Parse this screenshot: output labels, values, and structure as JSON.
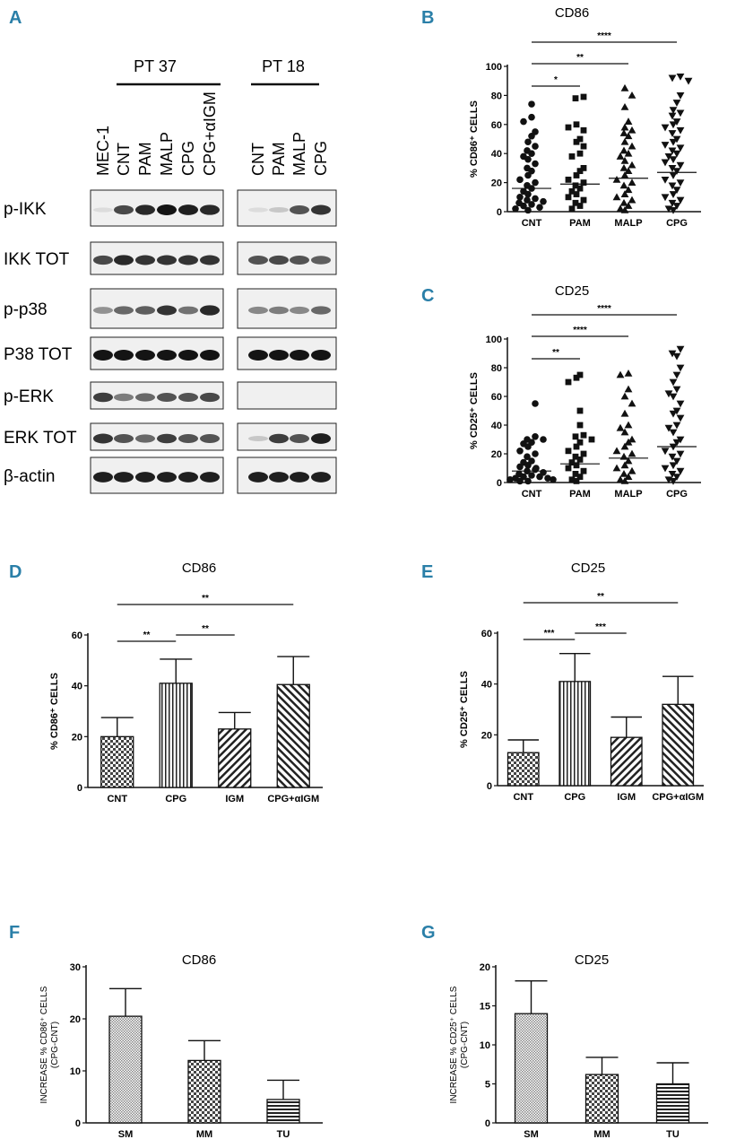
{
  "panel_letters": {
    "a": "A",
    "b": "B",
    "c": "C",
    "d": "D",
    "e": "E",
    "f": "F",
    "g": "G"
  },
  "colors": {
    "panel_letter": "#2a7fa8",
    "ink": "#111111"
  },
  "western_blot": {
    "group1_label": "PT 37",
    "group2_label": "PT 18",
    "group1_lanes": [
      "MEC-1",
      "CNT",
      "PAM",
      "MALP",
      "CPG",
      "CPG+αIGM"
    ],
    "group2_lanes": [
      "CNT",
      "PAM",
      "MALP",
      "CPG"
    ],
    "rows": [
      {
        "label": "p-IKK",
        "g1": [
          0.05,
          0.75,
          0.9,
          1.0,
          0.95,
          0.9
        ],
        "g2": [
          0.05,
          0.15,
          0.7,
          0.85
        ]
      },
      {
        "label": "IKK TOT",
        "g1": [
          0.75,
          0.9,
          0.85,
          0.85,
          0.85,
          0.85
        ],
        "g2": [
          0.7,
          0.75,
          0.7,
          0.65
        ]
      },
      {
        "label": "p-p38",
        "g1": [
          0.4,
          0.6,
          0.65,
          0.85,
          0.55,
          0.9
        ],
        "g2": [
          0.45,
          0.5,
          0.45,
          0.6
        ]
      },
      {
        "label": "P38 TOT",
        "g1": [
          1.0,
          1.0,
          1.0,
          1.0,
          1.0,
          1.0
        ],
        "g2": [
          1.0,
          1.0,
          1.0,
          1.0
        ]
      },
      {
        "label": "p-ERK",
        "g1": [
          0.8,
          0.5,
          0.6,
          0.7,
          0.7,
          0.75
        ],
        "g2": [
          0.0,
          0.0,
          0.0,
          0.0
        ]
      },
      {
        "label": "ERK TOT",
        "g1": [
          0.85,
          0.7,
          0.6,
          0.8,
          0.7,
          0.7
        ],
        "g2": [
          0.15,
          0.8,
          0.7,
          0.95
        ]
      },
      {
        "label": "β-actin",
        "g1": [
          0.95,
          0.95,
          0.95,
          0.95,
          0.95,
          0.95
        ],
        "g2": [
          0.95,
          0.95,
          0.95,
          0.95
        ]
      }
    ]
  },
  "chart_data": [
    {
      "id": "B",
      "type": "scatter",
      "title": "CD86",
      "ylabel": "% CD86⁺ CELLS",
      "ylim": [
        0,
        100
      ],
      "yticks": [
        0,
        20,
        40,
        60,
        80,
        100
      ],
      "categories": [
        "CNT",
        "PAM",
        "MALP",
        "CPG"
      ],
      "markers": [
        "circle",
        "square",
        "triangle-up",
        "triangle-down"
      ],
      "series": [
        {
          "name": "CNT",
          "values": [
            74,
            65,
            62,
            55,
            52,
            48,
            45,
            42,
            40,
            38,
            36,
            33,
            30,
            28,
            25,
            22,
            20,
            18,
            16,
            14,
            12,
            10,
            9,
            8,
            7,
            6,
            5,
            4,
            3,
            2,
            1
          ],
          "mean": 16
        },
        {
          "name": "PAM",
          "values": [
            79,
            78,
            60,
            58,
            56,
            50,
            48,
            45,
            40,
            38,
            30,
            28,
            25,
            22,
            20,
            18,
            16,
            14,
            12,
            10,
            8,
            6,
            4,
            2
          ],
          "mean": 19
        },
        {
          "name": "MALP",
          "values": [
            85,
            80,
            72,
            62,
            58,
            56,
            54,
            52,
            48,
            45,
            42,
            40,
            38,
            35,
            32,
            30,
            28,
            25,
            22,
            20,
            18,
            15,
            12,
            10,
            8,
            6,
            4,
            2,
            1
          ],
          "mean": 23
        },
        {
          "name": "CPG",
          "values": [
            93,
            92,
            90,
            80,
            75,
            70,
            68,
            66,
            62,
            60,
            58,
            56,
            54,
            50,
            48,
            46,
            44,
            42,
            40,
            38,
            36,
            34,
            32,
            30,
            28,
            25,
            22,
            20,
            18,
            15,
            12,
            10,
            8,
            6,
            4,
            2,
            1
          ],
          "mean": 27
        }
      ],
      "significance": [
        {
          "from": "CNT",
          "to": "PAM",
          "label": "*"
        },
        {
          "from": "CNT",
          "to": "MALP",
          "label": "**"
        },
        {
          "from": "CNT",
          "to": "CPG",
          "label": "****"
        }
      ]
    },
    {
      "id": "C",
      "type": "scatter",
      "title": "CD25",
      "ylabel": "% CD25⁺ CELLS",
      "ylim": [
        0,
        100
      ],
      "yticks": [
        0,
        20,
        40,
        60,
        80,
        100
      ],
      "categories": [
        "CNT",
        "PAM",
        "MALP",
        "CPG"
      ],
      "markers": [
        "circle",
        "square",
        "triangle-up",
        "triangle-down"
      ],
      "series": [
        {
          "name": "CNT",
          "values": [
            55,
            32,
            30,
            30,
            28,
            27,
            25,
            22,
            20,
            18,
            15,
            14,
            12,
            11,
            10,
            9,
            8,
            7,
            6,
            5,
            4,
            4,
            3,
            3,
            2,
            2,
            1,
            1
          ],
          "mean": 8
        },
        {
          "name": "PAM",
          "values": [
            75,
            73,
            70,
            50,
            40,
            33,
            32,
            30,
            28,
            25,
            22,
            20,
            18,
            16,
            14,
            12,
            10,
            8,
            6,
            4,
            2,
            1
          ],
          "mean": 13
        },
        {
          "name": "MALP",
          "values": [
            76,
            75,
            65,
            60,
            55,
            48,
            40,
            38,
            35,
            30,
            28,
            25,
            22,
            20,
            18,
            15,
            12,
            10,
            8,
            6,
            4,
            2,
            1
          ],
          "mean": 17
        },
        {
          "name": "CPG",
          "values": [
            93,
            90,
            88,
            80,
            75,
            70,
            65,
            62,
            60,
            55,
            50,
            48,
            45,
            40,
            38,
            35,
            30,
            28,
            25,
            22,
            20,
            18,
            15,
            12,
            10,
            8,
            6,
            4,
            2,
            1
          ],
          "mean": 25
        }
      ],
      "significance": [
        {
          "from": "CNT",
          "to": "PAM",
          "label": "**"
        },
        {
          "from": "CNT",
          "to": "MALP",
          "label": "****"
        },
        {
          "from": "CNT",
          "to": "CPG",
          "label": "****"
        }
      ]
    },
    {
      "id": "D",
      "type": "bar",
      "title": "CD86",
      "ylabel": "% CD86⁺ CELLS",
      "ylim": [
        0,
        60
      ],
      "yticks": [
        0,
        20,
        40,
        60
      ],
      "categories": [
        "CNT",
        "CPG",
        "IGM",
        "CPG+αIGM"
      ],
      "values": [
        20,
        41,
        23,
        40.5
      ],
      "errors": [
        7.5,
        9.5,
        6.5,
        11
      ],
      "patterns": [
        "check",
        "vert",
        "diag",
        "diag2"
      ],
      "significance": [
        {
          "from": "CNT",
          "to": "CPG",
          "label": "**"
        },
        {
          "from": "CPG",
          "to": "IGM",
          "label": "**"
        },
        {
          "from": "CNT",
          "to": "CPG+αIGM",
          "label": "**"
        }
      ]
    },
    {
      "id": "E",
      "type": "bar",
      "title": "CD25",
      "ylabel": "% CD25⁺ CELLS",
      "ylim": [
        0,
        60
      ],
      "yticks": [
        0,
        20,
        40,
        60
      ],
      "categories": [
        "CNT",
        "CPG",
        "IGM",
        "CPG+αIGM"
      ],
      "values": [
        13,
        41,
        19,
        32
      ],
      "errors": [
        5,
        11,
        8,
        11
      ],
      "patterns": [
        "check",
        "vert",
        "diag",
        "diag2"
      ],
      "significance": [
        {
          "from": "CNT",
          "to": "CPG",
          "label": "***"
        },
        {
          "from": "CPG",
          "to": "IGM",
          "label": "***"
        },
        {
          "from": "CNT",
          "to": "CPG+αIGM",
          "label": "**"
        }
      ]
    },
    {
      "id": "F",
      "type": "bar",
      "title": "CD86",
      "ylabel": "INCREASE % CD86⁺ CELLS",
      "ylabel2": "(CPG-CNT)",
      "ylim": [
        0,
        30
      ],
      "yticks": [
        0,
        10,
        20,
        30
      ],
      "categories": [
        "SM",
        "MM",
        "TU"
      ],
      "values": [
        20.5,
        12,
        4.5
      ],
      "errors": [
        5.3,
        3.8,
        3.7
      ],
      "patterns": [
        "fine",
        "check",
        "horiz"
      ],
      "significance": []
    },
    {
      "id": "G",
      "type": "bar",
      "title": "CD25",
      "ylabel": "INCREASE % CD25⁺ CELLS",
      "ylabel2": "(CPG-CNT)",
      "ylim": [
        0,
        20
      ],
      "yticks": [
        0,
        5,
        10,
        15,
        20
      ],
      "categories": [
        "SM",
        "MM",
        "TU"
      ],
      "values": [
        14,
        6.2,
        5
      ],
      "errors": [
        4.2,
        2.2,
        2.7
      ],
      "patterns": [
        "fine",
        "check",
        "horiz"
      ],
      "significance": []
    }
  ]
}
